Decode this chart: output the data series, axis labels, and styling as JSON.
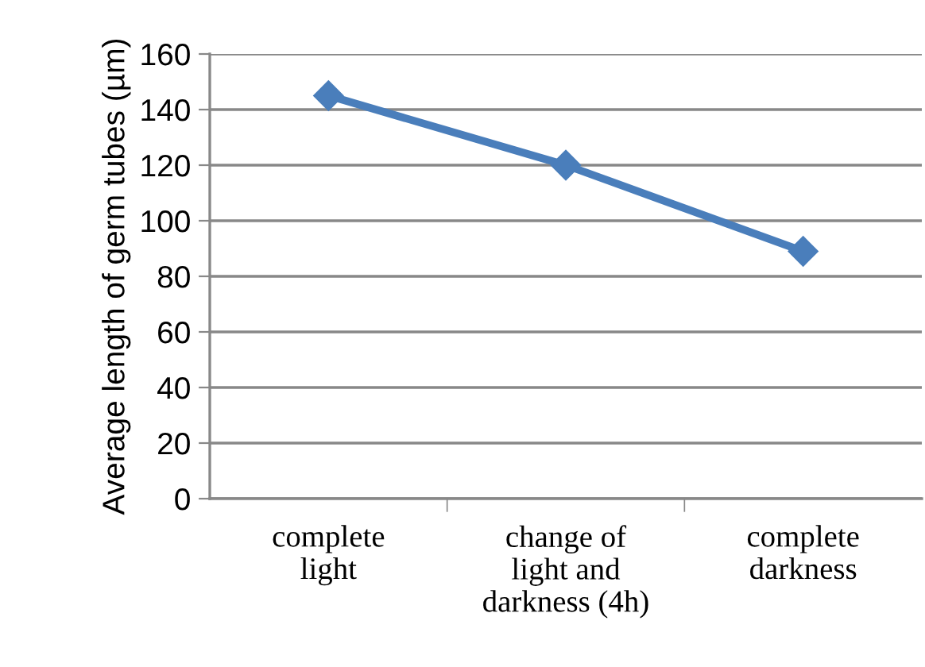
{
  "chart_data": {
    "type": "line",
    "ylabel": "Average length of germ tubes (µm)",
    "categories": [
      "complete\nlight",
      "change of\nlight and\ndarkness (4h)",
      "complete\ndarkness"
    ],
    "series": [
      {
        "color": "#4a7ebb",
        "values": [
          145,
          120,
          89
        ]
      }
    ],
    "ylim": [
      0,
      160
    ],
    "yticks": [
      0,
      20,
      40,
      60,
      80,
      100,
      120,
      140,
      160
    ],
    "grid": "y",
    "marker": "diamond",
    "line_style": "solid"
  }
}
